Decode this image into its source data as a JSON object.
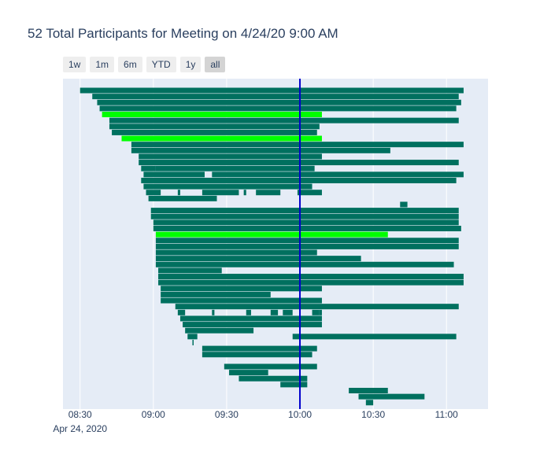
{
  "chart_data": {
    "type": "timeline",
    "title": "52 Total Participants for Meeting on 4/24/20 9:00 AM",
    "range_buttons": [
      {
        "label": "1w",
        "active": false
      },
      {
        "label": "1m",
        "active": false
      },
      {
        "label": "6m",
        "active": false
      },
      {
        "label": "YTD",
        "active": false
      },
      {
        "label": "1y",
        "active": false
      },
      {
        "label": "all",
        "active": true
      }
    ],
    "x_axis": {
      "range": [
        "08:23",
        "11:17"
      ],
      "ticks": [
        {
          "time": "08:30",
          "label": "08:30",
          "sublabel": "Apr 24, 2020"
        },
        {
          "time": "09:00",
          "label": "09:00",
          "sublabel": ""
        },
        {
          "time": "09:30",
          "label": "09:30",
          "sublabel": ""
        },
        {
          "time": "10:00",
          "label": "10:00",
          "sublabel": ""
        },
        {
          "time": "10:30",
          "label": "10:30",
          "sublabel": ""
        },
        {
          "time": "11:00",
          "label": "11:00",
          "sublabel": ""
        }
      ]
    },
    "reference_line": {
      "time": "10:00",
      "color": "#0000cc"
    },
    "colors": {
      "default": "#00705f",
      "highlight": "#00ff00",
      "plot_bg": "#e5ecf6",
      "grid": "#ffffff"
    },
    "rows": [
      [
        [
          "08:30",
          "11:07"
        ]
      ],
      [
        [
          "08:35",
          "11:05"
        ]
      ],
      [
        [
          "08:37",
          "11:06"
        ]
      ],
      [
        [
          "08:38",
          "11:04"
        ]
      ],
      [
        {
          "t": [
            "08:39",
            "10:09"
          ],
          "h": true
        }
      ],
      [
        [
          "08:42",
          "11:05"
        ]
      ],
      [
        [
          "08:42",
          "10:08"
        ]
      ],
      [
        [
          "08:43",
          "10:07"
        ]
      ],
      [
        {
          "t": [
            "08:47",
            "10:09"
          ],
          "h": true
        }
      ],
      [
        [
          "08:51",
          "11:07"
        ]
      ],
      [
        [
          "08:51",
          "10:37"
        ]
      ],
      [
        [
          "08:54",
          "10:09"
        ]
      ],
      [
        [
          "08:54",
          "11:05"
        ]
      ],
      [
        [
          "08:55",
          "09:01"
        ],
        [
          "09:01",
          "10:06"
        ]
      ],
      [
        [
          "08:56",
          "09:21"
        ],
        [
          "09:24",
          "11:07"
        ]
      ],
      [
        [
          "08:55",
          "11:04"
        ]
      ],
      [
        [
          "08:56",
          "10:05"
        ]
      ],
      [
        [
          "08:57",
          "09:03"
        ],
        [
          "09:10",
          "09:11"
        ],
        [
          "09:20",
          "09:35"
        ],
        [
          "09:37",
          "09:38"
        ],
        [
          "09:42",
          "09:52"
        ],
        [
          "09:59",
          "10:09"
        ]
      ],
      [
        [
          "08:58",
          "09:26"
        ]
      ],
      [
        [
          "10:41",
          "10:44"
        ]
      ],
      [
        [
          "08:59",
          "11:05"
        ]
      ],
      [
        [
          "08:59",
          "11:05"
        ]
      ],
      [
        [
          "09:00",
          "11:05"
        ]
      ],
      [
        [
          "09:00",
          "11:06"
        ]
      ],
      [
        {
          "t": [
            "09:01",
            "10:36"
          ],
          "h": true
        }
      ],
      [
        [
          "09:01",
          "11:05"
        ]
      ],
      [
        [
          "09:01",
          "11:05"
        ]
      ],
      [
        [
          "09:01",
          "10:07"
        ]
      ],
      [
        [
          "09:01",
          "10:25"
        ]
      ],
      [
        [
          "09:01",
          "11:03"
        ]
      ],
      [
        [
          "09:02",
          "09:28"
        ]
      ],
      [
        [
          "09:02",
          "11:07"
        ]
      ],
      [
        [
          "09:02",
          "11:07"
        ]
      ],
      [
        [
          "09:03",
          "10:09"
        ]
      ],
      [
        [
          "09:03",
          "09:48"
        ]
      ],
      [
        [
          "09:03",
          "10:09"
        ]
      ],
      [
        [
          "09:09",
          "11:05"
        ]
      ],
      [
        [
          "09:10",
          "09:13"
        ],
        [
          "09:24",
          "09:25"
        ],
        [
          "09:38",
          "09:40"
        ],
        [
          "09:48",
          "09:51"
        ],
        [
          "09:53",
          "09:57"
        ],
        [
          "10:05",
          "10:08"
        ],
        [
          "10:08",
          "10:09"
        ]
      ],
      [
        [
          "09:11",
          "10:09"
        ]
      ],
      [
        [
          "09:12",
          "10:09"
        ]
      ],
      [
        [
          "09:13",
          "09:41"
        ]
      ],
      [
        [
          "09:14",
          "09:18"
        ],
        [
          "09:57",
          "11:04"
        ]
      ],
      [
        [
          "09:16",
          "09:16"
        ]
      ],
      [
        [
          "09:20",
          "10:07"
        ]
      ],
      [
        [
          "09:20",
          "10:05"
        ]
      ],
      [],
      [
        [
          "09:29",
          "10:07"
        ]
      ],
      [
        [
          "09:31",
          "09:47"
        ]
      ],
      [
        [
          "09:35",
          "10:03"
        ]
      ],
      [
        [
          "09:52",
          "10:03"
        ]
      ],
      [
        [
          "10:20",
          "10:36"
        ]
      ],
      [
        [
          "10:24",
          "10:51"
        ]
      ],
      [
        [
          "10:27",
          "10:30"
        ]
      ]
    ]
  }
}
